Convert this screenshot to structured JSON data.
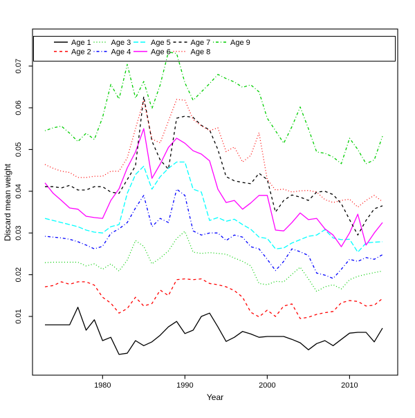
{
  "colors": {
    "black": "#000000",
    "red": "#FF0000",
    "green": "#00CD00",
    "blue": "#0000FF",
    "cyan": "#00FFFF",
    "magenta": "#FF00FF",
    "background": "#FFFFFF"
  },
  "chart_data": {
    "type": "line",
    "title": "",
    "xlabel": "Year",
    "ylabel": "Discard mean weight",
    "x": [
      1973,
      1974,
      1975,
      1976,
      1977,
      1978,
      1979,
      1980,
      1981,
      1982,
      1983,
      1984,
      1985,
      1986,
      1987,
      1988,
      1989,
      1990,
      1991,
      1992,
      1993,
      1994,
      1995,
      1996,
      1997,
      1998,
      1999,
      2000,
      2001,
      2002,
      2003,
      2004,
      2005,
      2006,
      2007,
      2008,
      2009,
      2010,
      2011,
      2012,
      2013,
      2014
    ],
    "x_ticks": [
      1980,
      1990,
      2000,
      2010
    ],
    "y_ticks": [
      0.01,
      0.02,
      0.03,
      0.04,
      0.05,
      0.06,
      0.07
    ],
    "xlim": [
      1973,
      2014
    ],
    "ylim": [
      0.01,
      0.07
    ],
    "grid": false,
    "legend_position": "top-left",
    "legend_rows": 2,
    "series": [
      {
        "name": "Age 1",
        "color": "#000000",
        "linetype": "solid",
        "values": [
          0.008,
          0.008,
          0.008,
          0.008,
          0.0122,
          0.0067,
          0.0092,
          0.0042,
          0.005,
          0.0009,
          0.0012,
          0.0042,
          0.003,
          0.0039,
          0.0055,
          0.0075,
          0.0088,
          0.0059,
          0.0067,
          0.01,
          0.0108,
          0.0075,
          0.004,
          0.005,
          0.0064,
          0.0058,
          0.005,
          0.0052,
          0.0052,
          0.0052,
          0.0045,
          0.0037,
          0.002,
          0.0035,
          0.0042,
          0.003,
          0.0045,
          0.006,
          0.0062,
          0.0062,
          0.0039,
          0.0072
        ]
      },
      {
        "name": "Age 2",
        "color": "#FF0000",
        "linetype": "dashed",
        "values": [
          0.0171,
          0.0174,
          0.0183,
          0.0177,
          0.0183,
          0.0183,
          0.0175,
          0.0146,
          0.0132,
          0.0108,
          0.0119,
          0.0146,
          0.0125,
          0.0131,
          0.0163,
          0.015,
          0.0188,
          0.019,
          0.0188,
          0.019,
          0.0179,
          0.0176,
          0.0171,
          0.0162,
          0.0146,
          0.011,
          0.0099,
          0.0115,
          0.01,
          0.0125,
          0.013,
          0.0095,
          0.0098,
          0.0105,
          0.0109,
          0.0112,
          0.0133,
          0.0138,
          0.0136,
          0.0125,
          0.0127,
          0.0143
        ]
      },
      {
        "name": "Age 3",
        "color": "#00CD00",
        "linetype": "dotted",
        "values": [
          0.0229,
          0.023,
          0.023,
          0.023,
          0.023,
          0.0221,
          0.0226,
          0.0213,
          0.0226,
          0.0209,
          0.0235,
          0.0282,
          0.0268,
          0.0226,
          0.024,
          0.0257,
          0.0287,
          0.0304,
          0.0254,
          0.0251,
          0.0253,
          0.0251,
          0.0249,
          0.024,
          0.0232,
          0.0221,
          0.0179,
          0.0176,
          0.0184,
          0.0183,
          0.0201,
          0.0218,
          0.019,
          0.016,
          0.0171,
          0.0176,
          0.0166,
          0.0188,
          0.0196,
          0.0201,
          0.0205,
          0.0209
        ]
      },
      {
        "name": "Age 4",
        "color": "#0000FF",
        "linetype": "dotdash",
        "values": [
          0.0292,
          0.029,
          0.0288,
          0.0285,
          0.0279,
          0.0271,
          0.0262,
          0.0268,
          0.0299,
          0.031,
          0.0325,
          0.036,
          0.039,
          0.0315,
          0.0335,
          0.0325,
          0.0405,
          0.039,
          0.0305,
          0.0295,
          0.03,
          0.03,
          0.0282,
          0.0295,
          0.029,
          0.0267,
          0.0262,
          0.0237,
          0.021,
          0.0232,
          0.0262,
          0.0255,
          0.0246,
          0.0204,
          0.0199,
          0.0191,
          0.0213,
          0.0237,
          0.0232,
          0.0241,
          0.0237,
          0.0248
        ]
      },
      {
        "name": "Age 5",
        "color": "#00FFFF",
        "linetype": "longdash",
        "values": [
          0.0335,
          0.033,
          0.0325,
          0.032,
          0.0315,
          0.0307,
          0.0302,
          0.03,
          0.0315,
          0.032,
          0.0395,
          0.044,
          0.046,
          0.0405,
          0.0435,
          0.0455,
          0.047,
          0.047,
          0.0405,
          0.0398,
          0.033,
          0.0337,
          0.0328,
          0.0333,
          0.032,
          0.0309,
          0.029,
          0.0287,
          0.0262,
          0.0264,
          0.0276,
          0.0284,
          0.0292,
          0.0295,
          0.0308,
          0.0288,
          0.0284,
          0.0285,
          0.0254,
          0.0276,
          0.0278,
          0.0279
        ]
      },
      {
        "name": "Age 6",
        "color": "#FF00FF",
        "linetype": "solid",
        "values": [
          0.042,
          0.0395,
          0.0378,
          0.036,
          0.0357,
          0.034,
          0.0337,
          0.0335,
          0.0378,
          0.0406,
          0.0456,
          0.0494,
          0.055,
          0.0431,
          0.0465,
          0.0505,
          0.0527,
          0.0515,
          0.0497,
          0.0489,
          0.0473,
          0.0405,
          0.0373,
          0.0378,
          0.0357,
          0.0372,
          0.039,
          0.039,
          0.0307,
          0.0305,
          0.0325,
          0.0348,
          0.0332,
          0.0335,
          0.031,
          0.0295,
          0.0267,
          0.03,
          0.0345,
          0.0271,
          0.03,
          0.0325
        ]
      },
      {
        "name": "Age 7",
        "color": "#000000",
        "linetype": "dashed",
        "values": [
          0.0411,
          0.0411,
          0.0408,
          0.0414,
          0.0403,
          0.0403,
          0.0411,
          0.0411,
          0.0398,
          0.0395,
          0.0428,
          0.0461,
          0.0627,
          0.052,
          0.0475,
          0.0453,
          0.0575,
          0.058,
          0.0577,
          0.0558,
          0.0547,
          0.05,
          0.0435,
          0.0425,
          0.0421,
          0.0418,
          0.0443,
          0.0428,
          0.035,
          0.0378,
          0.0391,
          0.0386,
          0.0378,
          0.0398,
          0.04,
          0.0392,
          0.037,
          0.0332,
          0.0295,
          0.033,
          0.0358,
          0.0365
        ]
      },
      {
        "name": "Age 8",
        "color": "#FF0000",
        "linetype": "dotted",
        "values": [
          0.0464,
          0.0455,
          0.0448,
          0.0445,
          0.0433,
          0.0433,
          0.0436,
          0.0436,
          0.0448,
          0.0448,
          0.048,
          0.055,
          0.0618,
          0.0525,
          0.0516,
          0.0568,
          0.062,
          0.0618,
          0.0572,
          0.0557,
          0.0545,
          0.0552,
          0.0495,
          0.0506,
          0.047,
          0.0486,
          0.054,
          0.0428,
          0.0403,
          0.0405,
          0.0398,
          0.0401,
          0.0402,
          0.0398,
          0.038,
          0.0373,
          0.0378,
          0.0381,
          0.0362,
          0.0378,
          0.039,
          0.0375
        ]
      },
      {
        "name": "Age 9",
        "color": "#00CD00",
        "linetype": "dotdash",
        "values": [
          0.0545,
          0.0552,
          0.0556,
          0.0539,
          0.0519,
          0.0539,
          0.0524,
          0.0577,
          0.0656,
          0.0621,
          0.0704,
          0.0623,
          0.0663,
          0.0598,
          0.0655,
          0.0734,
          0.073,
          0.066,
          0.0618,
          0.0638,
          0.0658,
          0.068,
          0.067,
          0.0662,
          0.0649,
          0.0655,
          0.0638,
          0.0575,
          0.0545,
          0.0515,
          0.0555,
          0.0602,
          0.055,
          0.0494,
          0.0491,
          0.0482,
          0.0466,
          0.0527,
          0.05,
          0.0466,
          0.0475,
          0.0532
        ]
      }
    ]
  }
}
